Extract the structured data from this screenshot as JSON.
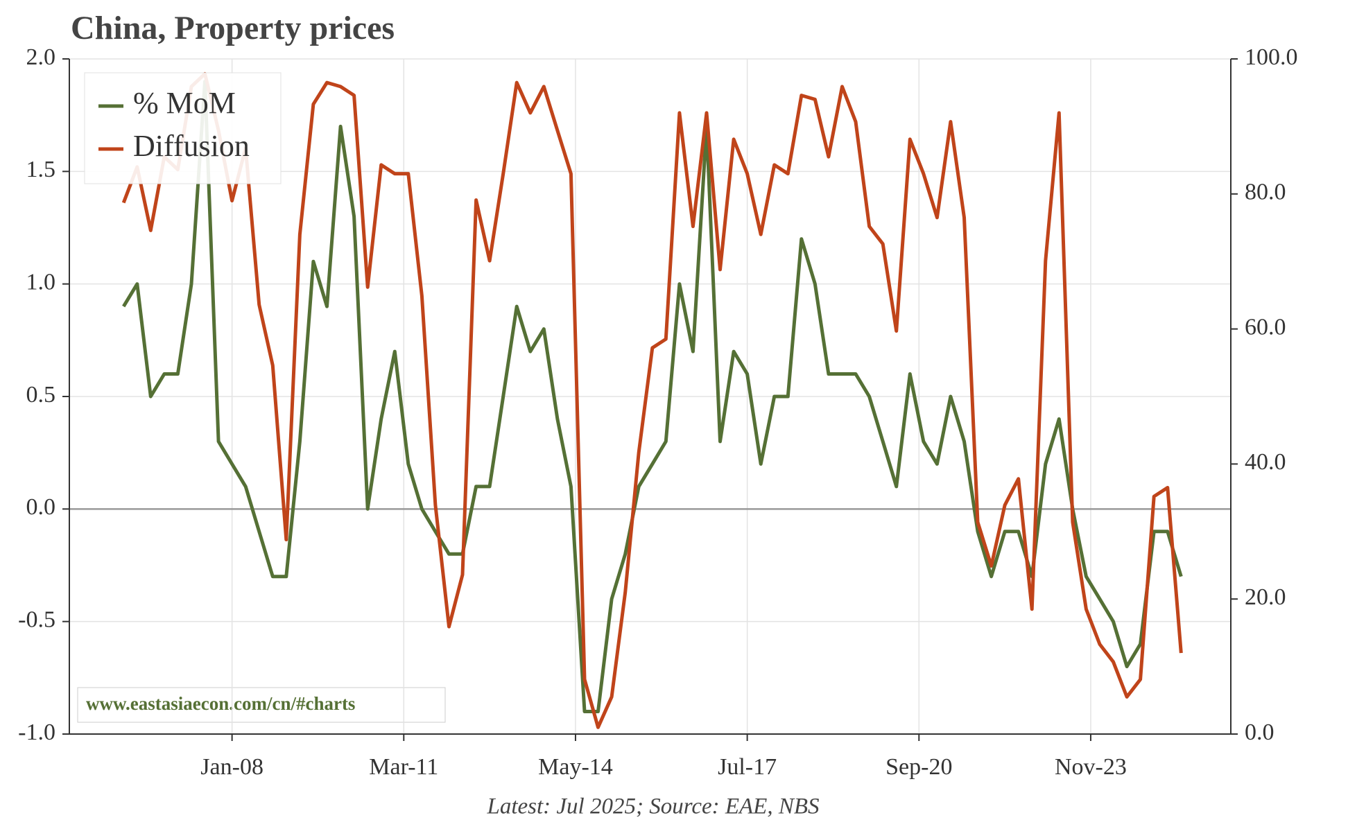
{
  "chart_data": {
    "type": "line",
    "title": "China, Property prices",
    "source": "Latest: Jul 2025; Source: EAE, NBS",
    "watermark": "www.eastasiaecon.com/cn/#charts",
    "x": [
      "2006-01",
      "2006-04",
      "2006-07",
      "2006-10",
      "2007-01",
      "2007-04",
      "2007-07",
      "2007-10",
      "2008-01",
      "2008-04",
      "2008-07",
      "2008-10",
      "2009-01",
      "2009-04",
      "2009-07",
      "2009-10",
      "2010-01",
      "2010-04",
      "2010-07",
      "2010-10",
      "2011-01",
      "2011-04",
      "2011-07",
      "2011-10",
      "2012-01",
      "2012-04",
      "2012-07",
      "2012-10",
      "2013-01",
      "2013-04",
      "2013-07",
      "2013-10",
      "2014-01",
      "2014-04",
      "2014-07",
      "2014-10",
      "2015-01",
      "2015-04",
      "2015-07",
      "2015-10",
      "2016-01",
      "2016-04",
      "2016-07",
      "2016-10",
      "2017-01",
      "2017-04",
      "2017-07",
      "2017-10",
      "2018-01",
      "2018-04",
      "2018-07",
      "2018-10",
      "2019-01",
      "2019-04",
      "2019-07",
      "2019-10",
      "2020-01",
      "2020-04",
      "2020-07",
      "2020-10",
      "2021-01",
      "2021-04",
      "2021-07",
      "2021-10",
      "2022-01",
      "2022-04",
      "2022-07",
      "2022-10",
      "2023-01",
      "2023-04",
      "2023-07",
      "2023-10",
      "2024-01",
      "2024-04",
      "2024-07",
      "2024-10",
      "2025-01",
      "2025-04",
      "2025-07"
    ],
    "series": [
      {
        "name": "% MoM",
        "color": "#557035",
        "axis": "y",
        "values": [
          0.9,
          1.0,
          0.5,
          0.6,
          0.6,
          1.0,
          1.9,
          0.3,
          0.2,
          0.1,
          -0.1,
          -0.3,
          -0.3,
          0.3,
          1.1,
          0.9,
          1.7,
          1.3,
          0.0,
          0.4,
          0.7,
          0.2,
          0.0,
          -0.1,
          -0.2,
          -0.2,
          0.1,
          0.1,
          0.5,
          0.9,
          0.7,
          0.8,
          0.4,
          0.1,
          -0.9,
          -0.9,
          -0.4,
          -0.2,
          0.1,
          0.2,
          0.3,
          1.0,
          0.7,
          1.7,
          0.3,
          0.7,
          0.6,
          0.2,
          0.5,
          0.5,
          1.2,
          1.0,
          0.6,
          0.6,
          0.6,
          0.5,
          0.3,
          0.1,
          0.6,
          0.3,
          0.2,
          0.5,
          0.3,
          -0.1,
          -0.3,
          -0.1,
          -0.1,
          -0.3,
          0.2,
          0.4,
          0.0,
          -0.3,
          -0.4,
          -0.5,
          -0.7,
          -0.6,
          -0.1,
          -0.1,
          -0.3
        ]
      },
      {
        "name": "Diffusion",
        "color": "#c0441a",
        "axis": "y2",
        "values": [
          78.7,
          84,
          74.6,
          85.5,
          83.6,
          95.9,
          97.8,
          89.4,
          79,
          86.8,
          63.6,
          54.6,
          28.8,
          74,
          93.3,
          96.5,
          95.9,
          94.6,
          66.2,
          84.3,
          83,
          83,
          64.9,
          33.9,
          15.9,
          23.6,
          79.1,
          70.1,
          83,
          96.5,
          92,
          95.9,
          89.4,
          83,
          8.1,
          1,
          5.5,
          21,
          41.7,
          57.2,
          58.5,
          92,
          75.2,
          92,
          68.8,
          88.1,
          83,
          74,
          84.3,
          83,
          94.6,
          94,
          85.5,
          95.9,
          90.7,
          75.2,
          72.6,
          59.7,
          88.1,
          83,
          76.5,
          90.7,
          76.5,
          31.4,
          24.9,
          33.9,
          37.8,
          18.5,
          70.1,
          92,
          31.4,
          18.5,
          13.3,
          10.7,
          5.5,
          8.1,
          35.2,
          36.5,
          12
        ]
      }
    ],
    "xlim": [
      "2005-01",
      "2026-06"
    ],
    "xticks": [
      {
        "value": "2008-01",
        "label": "Jan-08"
      },
      {
        "value": "2011-03",
        "label": "Mar-11"
      },
      {
        "value": "2014-05",
        "label": "May-14"
      },
      {
        "value": "2017-07",
        "label": "Jul-17"
      },
      {
        "value": "2020-09",
        "label": "Sep-20"
      },
      {
        "value": "2023-11",
        "label": "Nov-23"
      }
    ],
    "ylim": [
      -1,
      2
    ],
    "yticks": [
      {
        "value": -1,
        "label": "-1.0"
      },
      -0.5,
      {
        "value": 0,
        "label": "0.0"
      },
      0.5,
      {
        "value": 1,
        "label": "1.0"
      },
      1.5,
      {
        "value": 2,
        "label": "2.0"
      }
    ],
    "y2lim": [
      0,
      100
    ],
    "y2ticks": [
      {
        "value": 0,
        "label": "0.0"
      },
      {
        "value": 20,
        "label": "20.0"
      },
      {
        "value": 40,
        "label": "40.0"
      },
      {
        "value": 60,
        "label": "60.0"
      },
      {
        "value": 80,
        "label": "80.0"
      },
      {
        "value": 100,
        "label": "100.0"
      }
    ],
    "grid": true,
    "legend": "upper left"
  }
}
